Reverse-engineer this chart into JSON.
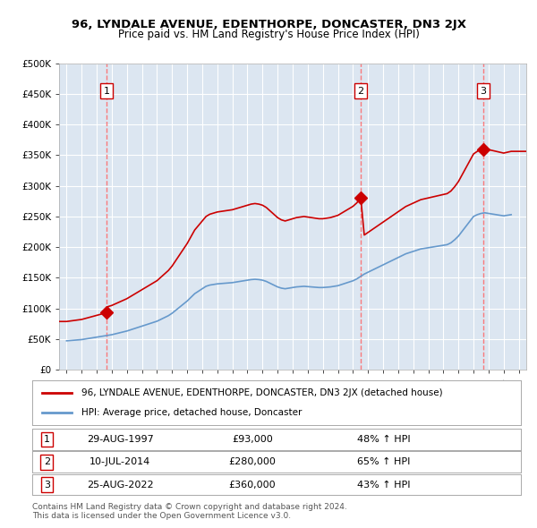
{
  "title": "96, LYNDALE AVENUE, EDENTHORPE, DONCASTER, DN3 2JX",
  "subtitle": "Price paid vs. HM Land Registry's House Price Index (HPI)",
  "ylabel_ticks": [
    "£0",
    "£50K",
    "£100K",
    "£150K",
    "£200K",
    "£250K",
    "£300K",
    "£350K",
    "£400K",
    "£450K",
    "£500K"
  ],
  "ytick_values": [
    0,
    50000,
    100000,
    150000,
    200000,
    250000,
    300000,
    350000,
    400000,
    450000,
    500000
  ],
  "ylim": [
    0,
    500000
  ],
  "xlim_start": 1994.5,
  "xlim_end": 2025.5,
  "sale_points": [
    {
      "year": 1997.66,
      "price": 93000,
      "label": "1"
    },
    {
      "year": 2014.52,
      "price": 280000,
      "label": "2"
    },
    {
      "year": 2022.65,
      "price": 360000,
      "label": "3"
    }
  ],
  "sale_info": [
    {
      "num": "1",
      "date": "29-AUG-1997",
      "price": "£93,000",
      "change": "48% ↑ HPI"
    },
    {
      "num": "2",
      "date": "10-JUL-2014",
      "price": "£280,000",
      "change": "65% ↑ HPI"
    },
    {
      "num": "3",
      "date": "25-AUG-2022",
      "price": "£360,000",
      "change": "43% ↑ HPI"
    }
  ],
  "property_color": "#cc0000",
  "hpi_color": "#6699cc",
  "background_color": "#dce6f1",
  "plot_bg_color": "#dce6f1",
  "grid_color": "#ffffff",
  "dashed_line_color": "#ff6666",
  "footer_text": "Contains HM Land Registry data © Crown copyright and database right 2024.\nThis data is licensed under the Open Government Licence v3.0.",
  "legend_label_property": "96, LYNDALE AVENUE, EDENTHORPE, DONCASTER, DN3 2JX (detached house)",
  "legend_label_hpi": "HPI: Average price, detached house, Doncaster",
  "hpi_data_x": [
    1995,
    1995.25,
    1995.5,
    1995.75,
    1996,
    1996.25,
    1996.5,
    1996.75,
    1997,
    1997.25,
    1997.5,
    1997.75,
    1998,
    1998.25,
    1998.5,
    1998.75,
    1999,
    1999.25,
    1999.5,
    1999.75,
    2000,
    2000.25,
    2000.5,
    2000.75,
    2001,
    2001.25,
    2001.5,
    2001.75,
    2002,
    2002.25,
    2002.5,
    2002.75,
    2003,
    2003.25,
    2003.5,
    2003.75,
    2004,
    2004.25,
    2004.5,
    2004.75,
    2005,
    2005.25,
    2005.5,
    2005.75,
    2006,
    2006.25,
    2006.5,
    2006.75,
    2007,
    2007.25,
    2007.5,
    2007.75,
    2008,
    2008.25,
    2008.5,
    2008.75,
    2009,
    2009.25,
    2009.5,
    2009.75,
    2010,
    2010.25,
    2010.5,
    2010.75,
    2011,
    2011.25,
    2011.5,
    2011.75,
    2012,
    2012.25,
    2012.5,
    2012.75,
    2013,
    2013.25,
    2013.5,
    2013.75,
    2014,
    2014.25,
    2014.5,
    2014.75,
    2015,
    2015.25,
    2015.5,
    2015.75,
    2016,
    2016.25,
    2016.5,
    2016.75,
    2017,
    2017.25,
    2017.5,
    2017.75,
    2018,
    2018.25,
    2018.5,
    2018.75,
    2019,
    2019.25,
    2019.5,
    2019.75,
    2020,
    2020.25,
    2020.5,
    2020.75,
    2021,
    2021.25,
    2021.5,
    2021.75,
    2022,
    2022.25,
    2022.5,
    2022.75,
    2023,
    2023.25,
    2023.5,
    2023.75,
    2024,
    2024.25,
    2024.5
  ],
  "hpi_data_y": [
    47000,
    47500,
    48000,
    48500,
    49000,
    50000,
    51000,
    52000,
    53000,
    54000,
    55000,
    56000,
    57000,
    58500,
    60000,
    61500,
    63000,
    65000,
    67000,
    69000,
    71000,
    73000,
    75000,
    77000,
    79000,
    82000,
    85000,
    88000,
    92000,
    97000,
    102000,
    107000,
    112000,
    118000,
    124000,
    128000,
    132000,
    136000,
    138000,
    139000,
    140000,
    140500,
    141000,
    141500,
    142000,
    143000,
    144000,
    145000,
    146000,
    147000,
    147500,
    147000,
    146000,
    144000,
    141000,
    138000,
    135000,
    133000,
    132000,
    133000,
    134000,
    135000,
    135500,
    136000,
    135500,
    135000,
    134500,
    134000,
    134000,
    134500,
    135000,
    136000,
    137000,
    139000,
    141000,
    143000,
    145000,
    148000,
    152000,
    156000,
    159000,
    162000,
    165000,
    168000,
    171000,
    174000,
    177000,
    180000,
    183000,
    186000,
    189000,
    191000,
    193000,
    195000,
    197000,
    198000,
    199000,
    200000,
    201000,
    202000,
    203000,
    204000,
    207000,
    212000,
    218000,
    226000,
    234000,
    242000,
    250000,
    253000,
    255000,
    256000,
    255000,
    254000,
    253000,
    252000,
    251000,
    252000,
    253000
  ],
  "property_line_x": [
    1994.5,
    1997.66,
    2014.52,
    2022.65,
    2025.5
  ],
  "property_line_y": [
    83000,
    93000,
    280000,
    360000,
    360000
  ],
  "xtick_years": [
    1995,
    1996,
    1997,
    1998,
    1999,
    2000,
    2001,
    2002,
    2003,
    2004,
    2005,
    2006,
    2007,
    2008,
    2009,
    2010,
    2011,
    2012,
    2013,
    2014,
    2015,
    2016,
    2017,
    2018,
    2019,
    2020,
    2021,
    2022,
    2023,
    2024,
    2025
  ]
}
